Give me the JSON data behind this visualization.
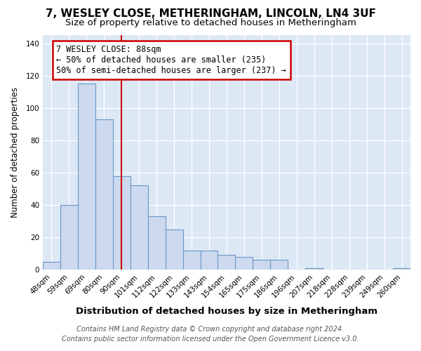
{
  "title": "7, WESLEY CLOSE, METHERINGHAM, LINCOLN, LN4 3UF",
  "subtitle": "Size of property relative to detached houses in Metheringham",
  "xlabel": "Distribution of detached houses by size in Metheringham",
  "ylabel": "Number of detached properties",
  "bar_labels": [
    "48sqm",
    "59sqm",
    "69sqm",
    "80sqm",
    "90sqm",
    "101sqm",
    "112sqm",
    "122sqm",
    "133sqm",
    "143sqm",
    "154sqm",
    "165sqm",
    "175sqm",
    "186sqm",
    "196sqm",
    "207sqm",
    "218sqm",
    "228sqm",
    "239sqm",
    "249sqm",
    "260sqm"
  ],
  "bar_values": [
    5,
    40,
    115,
    93,
    58,
    52,
    33,
    25,
    12,
    12,
    9,
    8,
    6,
    6,
    0,
    1,
    0,
    0,
    0,
    0,
    1
  ],
  "bar_color": "#ccd9ee",
  "bar_edge_color": "#6b96c8",
  "vline_x": 4,
  "vline_color": "#cc0000",
  "ylim": [
    0,
    145
  ],
  "yticks": [
    0,
    20,
    40,
    60,
    80,
    100,
    120,
    140
  ],
  "annotation_title": "7 WESLEY CLOSE: 88sqm",
  "annotation_line1": "← 50% of detached houses are smaller (235)",
  "annotation_line2": "50% of semi-detached houses are larger (237) →",
  "annotation_box_facecolor": "#ffffff",
  "annotation_box_edgecolor": "#cc0000",
  "footer_line1": "Contains HM Land Registry data © Crown copyright and database right 2024.",
  "footer_line2": "Contains public sector information licensed under the Open Government Licence v3.0.",
  "figure_facecolor": "#ffffff",
  "axes_facecolor": "#dde8f5",
  "grid_color": "#ffffff",
  "title_fontsize": 11,
  "subtitle_fontsize": 9.5,
  "xlabel_fontsize": 9.5,
  "ylabel_fontsize": 8.5,
  "tick_fontsize": 7.5,
  "annotation_fontsize": 8.5,
  "footer_fontsize": 7
}
